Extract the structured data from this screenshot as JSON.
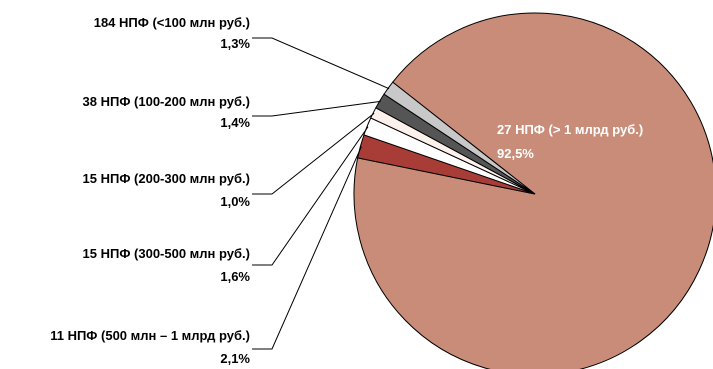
{
  "chart_data": {
    "type": "pie",
    "title": "",
    "slices": [
      {
        "label": "27 НПФ (> 1 млрд руб.)",
        "value_label": "92,5%",
        "value": 92.5,
        "color": "#c98c78"
      },
      {
        "label": "11 НПФ (500 млн – 1 млрд руб.)",
        "value_label": "2,1%",
        "value": 2.1,
        "color": "#a83c36"
      },
      {
        "label": "15 НПФ (300-500 млн руб.)",
        "value_label": "1,6%",
        "value": 1.6,
        "color": "#ffffff"
      },
      {
        "label": "15 НПФ (200-300 млн руб.)",
        "value_label": "1,0%",
        "value": 1.0,
        "color": "#fdf1ec"
      },
      {
        "label": "38 НПФ (100-200 млн руб.)",
        "value_label": "1,4%",
        "value": 1.4,
        "color": "#555555"
      },
      {
        "label": "184 НПФ (<100 млн руб.)",
        "value_label": "1,3%",
        "value": 1.3,
        "color": "#c8c8c8"
      }
    ],
    "stroke_color": "#000000"
  }
}
